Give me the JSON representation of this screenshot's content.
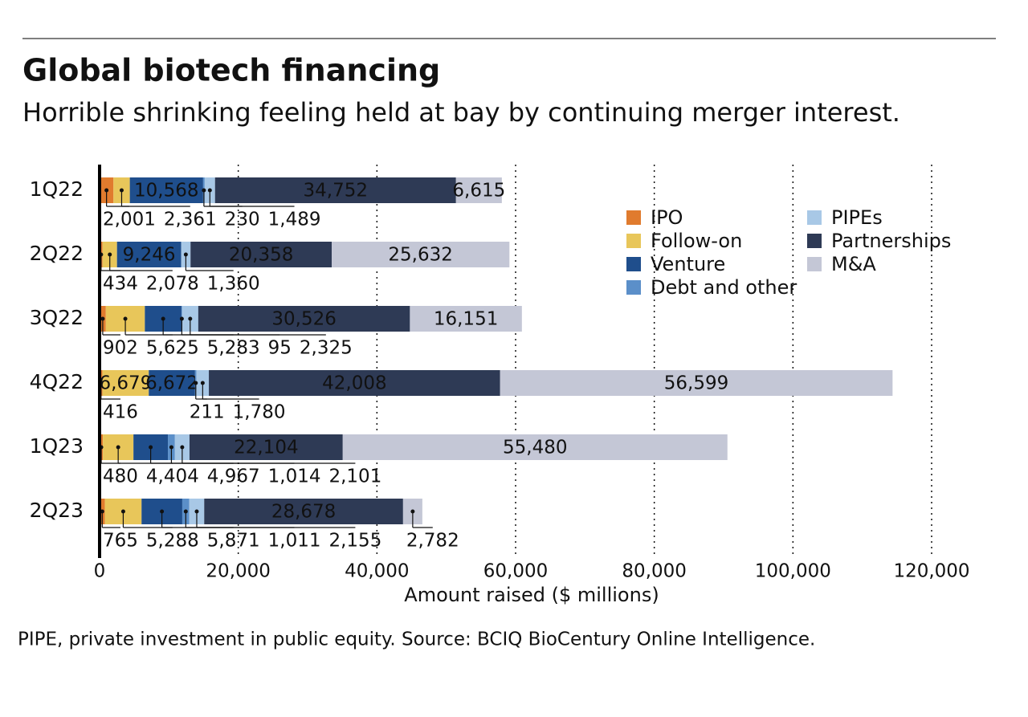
{
  "chart_data": {
    "type": "bar",
    "orientation": "horizontal",
    "stacked": true,
    "title": "Global biotech financing",
    "subtitle": "Horrible shrinking feeling held at bay by continuing merger interest.",
    "xlabel": "Amount raised ($ millions)",
    "note": "PIPE, private investment in public equity. Source: BCIQ BioCentury Online Intelligence.",
    "categories": [
      "1Q22",
      "2Q22",
      "3Q22",
      "4Q22",
      "1Q23",
      "2Q23"
    ],
    "series": [
      {
        "name": "IPO",
        "color": "#e07b2e",
        "values": [
          2001,
          434,
          902,
          416,
          480,
          765
        ],
        "value_labels": [
          "2,001",
          "434",
          "902",
          "416",
          "480",
          "765"
        ]
      },
      {
        "name": "Follow-on",
        "color": "#e8c65a",
        "values": [
          2361,
          2078,
          5625,
          6679,
          4404,
          5288
        ],
        "value_labels": [
          "2,361",
          "2,078",
          "5,625",
          "6,679",
          "4,404",
          "5,288"
        ]
      },
      {
        "name": "Venture",
        "color": "#1f4e8c",
        "values": [
          10568,
          9246,
          5283,
          6672,
          4967,
          5871
        ],
        "value_labels": [
          "10,568",
          "9,246",
          "5,283",
          "6,672",
          "4,967",
          "5,871"
        ]
      },
      {
        "name": "Debt and other",
        "color": "#5b8fc9",
        "values": [
          230,
          null,
          95,
          211,
          1014,
          1011
        ],
        "value_labels": [
          "230",
          null,
          "95",
          "211",
          "1,014",
          "1,011"
        ]
      },
      {
        "name": "PIPEs",
        "color": "#a8c8e6",
        "values": [
          1489,
          1360,
          2325,
          1780,
          2101,
          2155
        ],
        "value_labels": [
          "1,489",
          "1,360",
          "2,325",
          "1,780",
          "2,101",
          "2,155"
        ]
      },
      {
        "name": "Partnerships",
        "color": "#2e3a55",
        "values": [
          34752,
          20358,
          30526,
          42008,
          22104,
          28678
        ],
        "value_labels": [
          "34,752",
          "20,358",
          "30,526",
          "42,008",
          "22,104",
          "28,678"
        ]
      },
      {
        "name": "M&A",
        "color": "#c4c7d6",
        "values": [
          6615,
          25632,
          16151,
          56599,
          55480,
          2782
        ],
        "value_labels": [
          "6,615",
          "25,632",
          "16,151",
          "56,599",
          "55,480",
          "2,782"
        ]
      }
    ],
    "xlim": [
      0,
      120000
    ],
    "xticks": [
      0,
      {
        "value": 20000,
        "label": "20,000"
      },
      {
        "value": 40000,
        "label": "40,000"
      },
      {
        "value": 60000,
        "label": "60,000"
      },
      {
        "value": 80000,
        "label": "80,000"
      },
      {
        "value": 100000,
        "label": "100,000"
      },
      {
        "value": 120000,
        "label": "120,000"
      }
    ],
    "grid": true
  }
}
